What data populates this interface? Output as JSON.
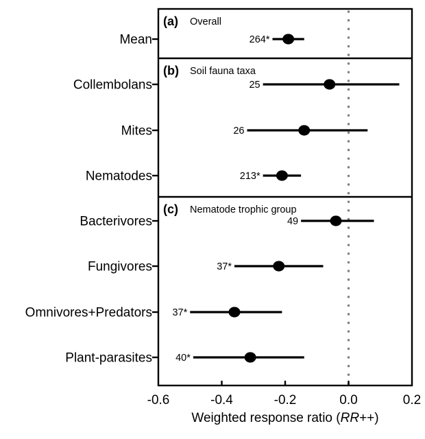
{
  "chart_data": {
    "type": "forest",
    "xlabel": {
      "prefix": "Weighted response ratio (",
      "italic": "RR",
      "suffix": "++)"
    },
    "xlim": [
      -0.6,
      0.2
    ],
    "x_ticks": [
      -0.6,
      -0.4,
      -0.2,
      0.0,
      0.2
    ],
    "x_tick_labels": [
      "-0.6",
      "-0.4",
      "-0.2",
      "0.0",
      "0.2"
    ],
    "inner_tick_values": [
      -0.4,
      -0.2,
      0.0
    ],
    "zero_line": {
      "x": 0.0,
      "style": "dotted"
    },
    "grid": false,
    "panels": [
      {
        "label": "(a)",
        "title": "Overall",
        "rows": [
          {
            "category": "Mean",
            "n_label": "264*",
            "point": -0.19,
            "ci_low": -0.24,
            "ci_high": -0.14
          }
        ]
      },
      {
        "label": "(b)",
        "title": "Soil fauna taxa",
        "rows": [
          {
            "category": "Collembolans",
            "n_label": "25",
            "point": -0.06,
            "ci_low": -0.27,
            "ci_high": 0.16
          },
          {
            "category": "Mites",
            "n_label": "26",
            "point": -0.14,
            "ci_low": -0.32,
            "ci_high": 0.06
          },
          {
            "category": "Nematodes",
            "n_label": "213*",
            "point": -0.21,
            "ci_low": -0.27,
            "ci_high": -0.15
          }
        ]
      },
      {
        "label": "(c)",
        "title": "Nematode trophic group",
        "rows": [
          {
            "category": "Bacterivores",
            "n_label": "49",
            "point": -0.04,
            "ci_low": -0.15,
            "ci_high": 0.08
          },
          {
            "category": "Fungivores",
            "n_label": "37*",
            "point": -0.22,
            "ci_low": -0.36,
            "ci_high": -0.08
          },
          {
            "category": "Omnivores+Predators",
            "n_label": "37*",
            "point": -0.36,
            "ci_low": -0.5,
            "ci_high": -0.21
          },
          {
            "category": "Plant-parasites",
            "n_label": "40*",
            "point": -0.31,
            "ci_low": -0.49,
            "ci_high": -0.14
          }
        ]
      }
    ],
    "colors": {
      "marker": "#000000",
      "ci_line": "#000000",
      "frame": "#000000",
      "zero_line": "#7f7f7f",
      "background": "#ffffff"
    }
  }
}
